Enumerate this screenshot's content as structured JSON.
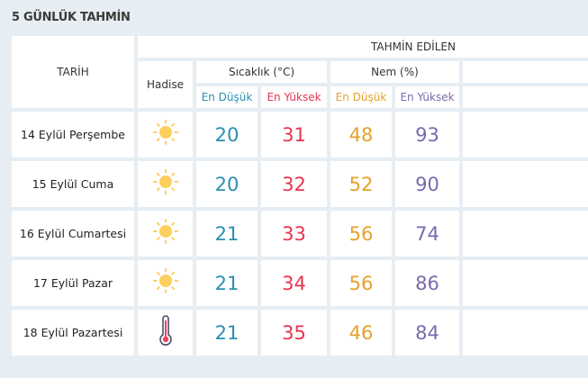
{
  "title": "5 GÜNLÜK TAHMİN",
  "header": {
    "date": "TARİH",
    "forecast": "TAHMİN EDİLEN",
    "event": "Hadise",
    "temp": "Sıcaklık (°C)",
    "humidity": "Nem (%)",
    "min": "En Düşük",
    "max": "En Yüksek"
  },
  "colors": {
    "temp_min": "#2a8fb0",
    "temp_max": "#e8344e",
    "hum_min": "#e6a12a",
    "hum_max": "#7a6aad"
  },
  "rows": [
    {
      "date": "14 Eylül Perşembe",
      "icon": "sun-icon",
      "tmin": "20",
      "tmax": "31",
      "hmin": "48",
      "hmax": "93"
    },
    {
      "date": "15 Eylül Cuma",
      "icon": "sun-icon",
      "tmin": "20",
      "tmax": "32",
      "hmin": "52",
      "hmax": "90"
    },
    {
      "date": "16 Eylül Cumartesi",
      "icon": "sun-icon",
      "tmin": "21",
      "tmax": "33",
      "hmin": "56",
      "hmax": "74"
    },
    {
      "date": "17 Eylül Pazar",
      "icon": "sun-icon",
      "tmin": "21",
      "tmax": "34",
      "hmin": "56",
      "hmax": "86"
    },
    {
      "date": "18 Eylül Pazartesi",
      "icon": "thermometer-icon",
      "tmin": "21",
      "tmax": "35",
      "hmin": "46",
      "hmax": "84"
    }
  ]
}
